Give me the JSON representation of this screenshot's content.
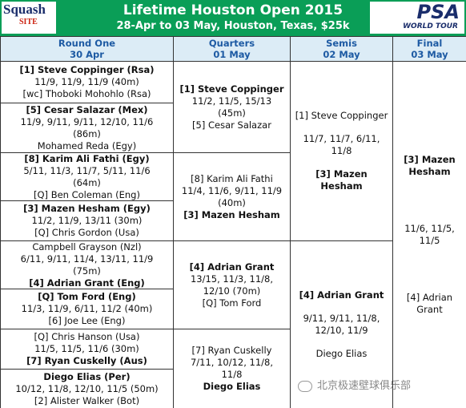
{
  "header": {
    "title": "Lifetime Houston Open 2015",
    "subtitle": "28-Apr to 03 May, Houston, Texas, $25k",
    "left_logo": [
      "Squash",
      "SITE"
    ],
    "right_logo": [
      "PSA",
      "WORLD TOUR"
    ]
  },
  "columns": [
    {
      "title": "Round One",
      "date": "30 Apr",
      "cells": [
        {
          "blocks": [
            {
              "bold": true,
              "lines": [
                "[1] Steve Coppinger (Rsa)"
              ]
            },
            {
              "bold": false,
              "lines": [
                "11/9, 11/9, 11/9 (40m)",
                "[wc] Thoboki Mohohlo (Rsa)"
              ]
            }
          ]
        },
        {
          "blocks": [
            {
              "bold": true,
              "lines": [
                "[5] Cesar Salazar (Mex)"
              ]
            },
            {
              "bold": false,
              "lines": [
                "11/9, 9/11, 9/11, 12/10, 11/6",
                "(86m)",
                "Mohamed Reda (Egy)"
              ]
            }
          ]
        },
        {
          "blocks": [
            {
              "bold": true,
              "lines": [
                "[8] Karim Ali Fathi (Egy)"
              ]
            },
            {
              "bold": false,
              "lines": [
                "5/11, 11/3, 11/7, 5/11, 11/6",
                "(64m)",
                "[Q] Ben Coleman (Eng)"
              ]
            }
          ]
        },
        {
          "blocks": [
            {
              "bold": true,
              "lines": [
                "[3] Mazen Hesham (Egy)"
              ]
            },
            {
              "bold": false,
              "lines": [
                "11/2, 11/9, 13/11 (30m)",
                "[Q] Chris Gordon (Usa)"
              ]
            }
          ]
        },
        {
          "blocks": [
            {
              "bold": false,
              "lines": [
                "Campbell Grayson (Nzl)",
                "6/11, 9/11, 11/4, 13/11, 11/9",
                "(75m)"
              ]
            },
            {
              "bold": true,
              "lines": [
                "[4] Adrian Grant (Eng)"
              ]
            }
          ]
        },
        {
          "blocks": [
            {
              "bold": true,
              "lines": [
                "[Q] Tom Ford (Eng)"
              ]
            },
            {
              "bold": false,
              "lines": [
                "11/3, 11/9, 6/11, 11/2 (40m)",
                "[6] Joe Lee (Eng)"
              ]
            }
          ]
        },
        {
          "blocks": [
            {
              "bold": false,
              "lines": [
                "[Q] Chris Hanson (Usa)",
                "11/5, 11/5, 11/6 (30m)"
              ]
            },
            {
              "bold": true,
              "lines": [
                "[7] Ryan Cuskelly (Aus)"
              ]
            }
          ]
        },
        {
          "blocks": [
            {
              "bold": true,
              "lines": [
                "Diego Elias (Per)"
              ]
            },
            {
              "bold": false,
              "lines": [
                "10/12, 11/8, 12/10, 11/5 (50m)",
                "[2] Alister Walker (Bot)"
              ]
            }
          ]
        }
      ]
    },
    {
      "title": "Quarters",
      "date": "01 May",
      "cells": [
        {
          "blocks": [
            {
              "bold": true,
              "lines": [
                "[1] Steve Coppinger"
              ]
            },
            {
              "bold": false,
              "lines": [
                "11/2, 11/5, 15/13",
                "(45m)",
                "[5] Cesar Salazar"
              ]
            }
          ]
        },
        {
          "blocks": [
            {
              "bold": false,
              "lines": [
                "[8] Karim Ali Fathi",
                "11/4, 11/6, 9/11, 11/9",
                "(40m)"
              ]
            },
            {
              "bold": true,
              "lines": [
                "[3] Mazen Hesham"
              ]
            }
          ]
        },
        {
          "blocks": [
            {
              "bold": true,
              "lines": [
                "[4] Adrian Grant"
              ]
            },
            {
              "bold": false,
              "lines": [
                "13/15, 11/3, 11/8,",
                "12/10 (70m)",
                "[Q] Tom Ford"
              ]
            }
          ]
        },
        {
          "blocks": [
            {
              "bold": false,
              "lines": [
                "[7] Ryan Cuskelly",
                "7/11, 10/12, 11/8,",
                "11/8"
              ]
            },
            {
              "bold": true,
              "lines": [
                "Diego Elias"
              ]
            }
          ]
        }
      ]
    },
    {
      "title": "Semis",
      "date": "02 May",
      "cells": [
        {
          "blocks": [
            {
              "bold": false,
              "lines": [
                "[1] Steve Coppinger"
              ]
            },
            {
              "bold": false,
              "lines": [
                "11/7, 11/7, 6/11,",
                "11/8"
              ]
            },
            {
              "bold": true,
              "lines": [
                "[3] Mazen",
                "Hesham"
              ]
            }
          ]
        },
        {
          "blocks": [
            {
              "bold": true,
              "lines": [
                "[4] Adrian Grant"
              ]
            },
            {
              "bold": false,
              "lines": [
                "9/11, 9/11, 11/8,",
                "12/10, 11/9"
              ]
            },
            {
              "bold": false,
              "lines": [
                "Diego Elias"
              ]
            }
          ]
        }
      ]
    },
    {
      "title": "Final",
      "date": "03 May",
      "cells": [
        {
          "blocks": [
            {
              "bold": true,
              "lines": [
                "[3] Mazen",
                "Hesham"
              ]
            },
            {
              "bold": false,
              "lines": [
                "11/6, 11/5,",
                "11/5"
              ]
            },
            {
              "bold": false,
              "lines": [
                "[4] Adrian",
                "Grant"
              ]
            }
          ]
        }
      ]
    }
  ],
  "watermark": "北京极速壁球俱乐部"
}
